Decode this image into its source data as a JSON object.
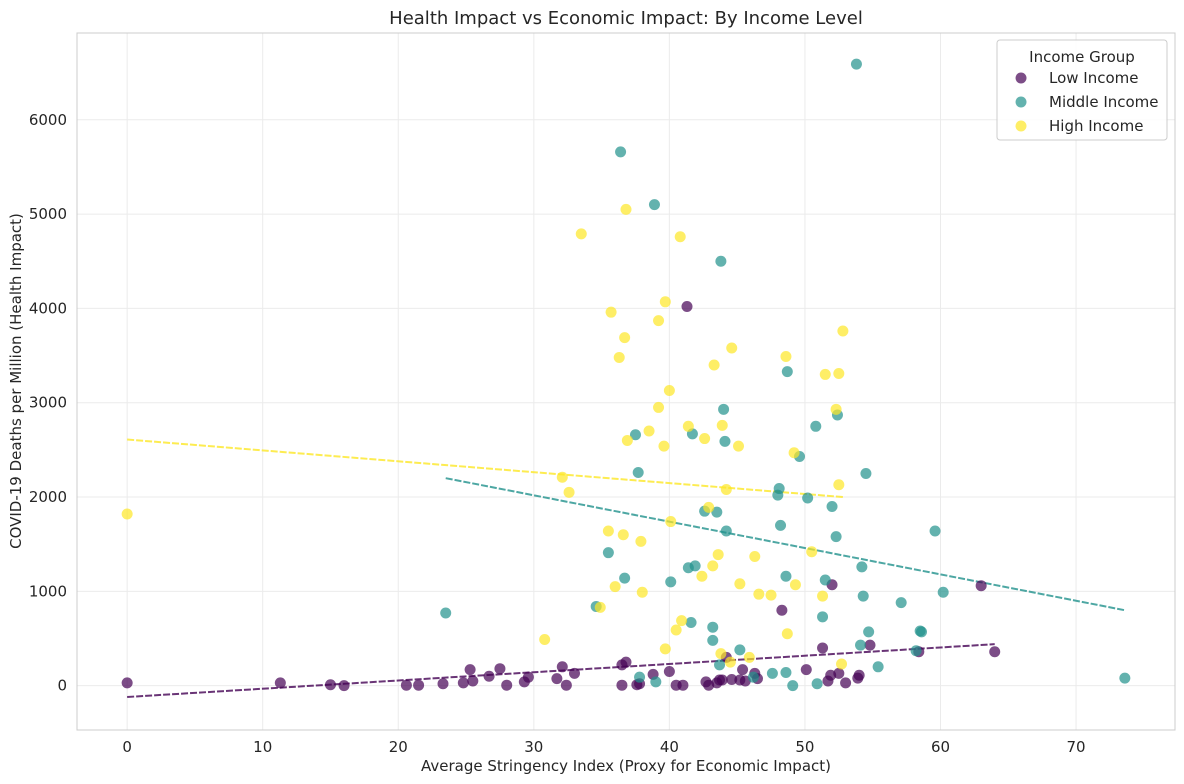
{
  "chart_data": {
    "type": "scatter",
    "title": "Health Impact vs Economic Impact: By Income Level",
    "xlabel": "Average Stringency Index (Proxy for Economic Impact)",
    "ylabel": "COVID-19 Deaths per Million (Health Impact)",
    "xlim": [
      -3.7,
      77.3
    ],
    "ylim": [
      -470,
      6920
    ],
    "x_ticks": [
      0,
      10,
      20,
      30,
      40,
      50,
      60,
      70
    ],
    "y_ticks": [
      0,
      1000,
      2000,
      3000,
      4000,
      5000,
      6000
    ],
    "grid": true,
    "legend_title": "Income Group",
    "legend_position": "top-right",
    "series": [
      {
        "name": "Low Income",
        "color": "#440154",
        "points": [
          [
            0,
            30
          ],
          [
            11.3,
            30
          ],
          [
            15,
            10
          ],
          [
            16,
            0
          ],
          [
            20.6,
            5
          ],
          [
            21.5,
            5
          ],
          [
            23.3,
            20
          ],
          [
            24.8,
            30
          ],
          [
            25.3,
            170
          ],
          [
            25.5,
            50
          ],
          [
            26.7,
            100
          ],
          [
            27.5,
            180
          ],
          [
            28,
            5
          ],
          [
            29.3,
            40
          ],
          [
            29.6,
            90
          ],
          [
            31.7,
            75
          ],
          [
            32.1,
            200
          ],
          [
            32.4,
            5
          ],
          [
            33.0,
            130
          ],
          [
            36.5,
            5
          ],
          [
            36.8,
            250
          ],
          [
            36.5,
            220
          ],
          [
            37.6,
            10
          ],
          [
            37.8,
            20
          ],
          [
            38.8,
            120
          ],
          [
            40.0,
            150
          ],
          [
            40.5,
            5
          ],
          [
            41.0,
            5
          ],
          [
            41.3,
            4020
          ],
          [
            42.7,
            40
          ],
          [
            42.9,
            5
          ],
          [
            43.5,
            30
          ],
          [
            43.7,
            60
          ],
          [
            43.9,
            60
          ],
          [
            44.2,
            300
          ],
          [
            44.6,
            65
          ],
          [
            45.2,
            60
          ],
          [
            45.4,
            170
          ],
          [
            45.6,
            50
          ],
          [
            46.3,
            130
          ],
          [
            46.5,
            75
          ],
          [
            48.3,
            800
          ],
          [
            50.1,
            170
          ],
          [
            51.3,
            400
          ],
          [
            51.7,
            50
          ],
          [
            51.9,
            110
          ],
          [
            52.0,
            1070
          ],
          [
            52.5,
            130
          ],
          [
            53.0,
            30
          ],
          [
            53.9,
            80
          ],
          [
            54.0,
            110
          ],
          [
            54.8,
            430
          ],
          [
            58.4,
            360
          ],
          [
            63.0,
            1060
          ],
          [
            64.0,
            360
          ]
        ],
        "trend": {
          "x": [
            0,
            64
          ],
          "y": [
            -120,
            440
          ]
        }
      },
      {
        "name": "Middle Income",
        "color": "#21918c",
        "points": [
          [
            23.5,
            770
          ],
          [
            34.6,
            840
          ],
          [
            35.5,
            1410
          ],
          [
            36.4,
            5660
          ],
          [
            36.7,
            1140
          ],
          [
            37.5,
            2660
          ],
          [
            37.7,
            2260
          ],
          [
            37.8,
            90
          ],
          [
            38.9,
            5100
          ],
          [
            39.0,
            40
          ],
          [
            40.1,
            1100
          ],
          [
            41.4,
            1250
          ],
          [
            41.6,
            670
          ],
          [
            41.7,
            2670
          ],
          [
            41.9,
            1270
          ],
          [
            42.6,
            1850
          ],
          [
            43.2,
            620
          ],
          [
            43.2,
            480
          ],
          [
            43.5,
            1840
          ],
          [
            43.7,
            220
          ],
          [
            43.8,
            4500
          ],
          [
            44.0,
            2930
          ],
          [
            44.1,
            2590
          ],
          [
            44.2,
            1640
          ],
          [
            45.2,
            380
          ],
          [
            46.2,
            90
          ],
          [
            47.6,
            130
          ],
          [
            48.0,
            2020
          ],
          [
            48.1,
            2090
          ],
          [
            48.2,
            1700
          ],
          [
            48.6,
            1160
          ],
          [
            48.7,
            3330
          ],
          [
            48.6,
            140
          ],
          [
            49.1,
            0
          ],
          [
            49.6,
            2430
          ],
          [
            50.2,
            1990
          ],
          [
            50.8,
            2750
          ],
          [
            50.9,
            20
          ],
          [
            51.3,
            730
          ],
          [
            51.5,
            1120
          ],
          [
            52.0,
            1900
          ],
          [
            52.3,
            1580
          ],
          [
            52.4,
            2870
          ],
          [
            53.8,
            6590
          ],
          [
            54.1,
            430
          ],
          [
            54.3,
            950
          ],
          [
            54.2,
            1260
          ],
          [
            54.5,
            2250
          ],
          [
            54.7,
            570
          ],
          [
            55.4,
            200
          ],
          [
            57.1,
            880
          ],
          [
            58.2,
            370
          ],
          [
            58.6,
            570
          ],
          [
            58.5,
            580
          ],
          [
            59.6,
            1640
          ],
          [
            60.2,
            990
          ],
          [
            73.6,
            80
          ]
        ],
        "trend": {
          "x": [
            23.5,
            73.6
          ],
          "y": [
            2200,
            800
          ]
        }
      },
      {
        "name": "High Income",
        "color": "#fde725",
        "points": [
          [
            0,
            1820
          ],
          [
            30.8,
            490
          ],
          [
            32.1,
            2210
          ],
          [
            32.6,
            2050
          ],
          [
            33.5,
            4790
          ],
          [
            34.9,
            830
          ],
          [
            35.5,
            1640
          ],
          [
            35.7,
            3960
          ],
          [
            36.0,
            1050
          ],
          [
            36.3,
            3480
          ],
          [
            36.7,
            3690
          ],
          [
            36.6,
            1600
          ],
          [
            36.8,
            5050
          ],
          [
            36.9,
            2600
          ],
          [
            37.9,
            1530
          ],
          [
            38.0,
            990
          ],
          [
            38.5,
            2700
          ],
          [
            39.2,
            3870
          ],
          [
            39.2,
            2950
          ],
          [
            39.7,
            4070
          ],
          [
            39.6,
            2540
          ],
          [
            39.7,
            390
          ],
          [
            40.0,
            3130
          ],
          [
            40.1,
            1740
          ],
          [
            40.5,
            590
          ],
          [
            40.8,
            4760
          ],
          [
            40.9,
            690
          ],
          [
            41.4,
            2750
          ],
          [
            42.4,
            1160
          ],
          [
            42.6,
            2620
          ],
          [
            42.9,
            1890
          ],
          [
            43.2,
            1270
          ],
          [
            43.3,
            3400
          ],
          [
            43.6,
            1390
          ],
          [
            43.8,
            340
          ],
          [
            43.9,
            2760
          ],
          [
            44.2,
            2080
          ],
          [
            44.5,
            250
          ],
          [
            44.6,
            3580
          ],
          [
            45.1,
            2540
          ],
          [
            45.2,
            1080
          ],
          [
            45.9,
            300
          ],
          [
            46.3,
            1370
          ],
          [
            46.6,
            970
          ],
          [
            47.5,
            960
          ],
          [
            48.6,
            3490
          ],
          [
            48.7,
            550
          ],
          [
            49.2,
            2470
          ],
          [
            49.3,
            1070
          ],
          [
            50.5,
            1420
          ],
          [
            51.3,
            950
          ],
          [
            51.5,
            3300
          ],
          [
            52.3,
            2930
          ],
          [
            52.5,
            3310
          ],
          [
            52.5,
            2130
          ],
          [
            52.7,
            230
          ],
          [
            52.8,
            3760
          ]
        ],
        "trend": {
          "x": [
            0,
            52.8
          ],
          "y": [
            2610,
            2000
          ]
        }
      }
    ]
  }
}
